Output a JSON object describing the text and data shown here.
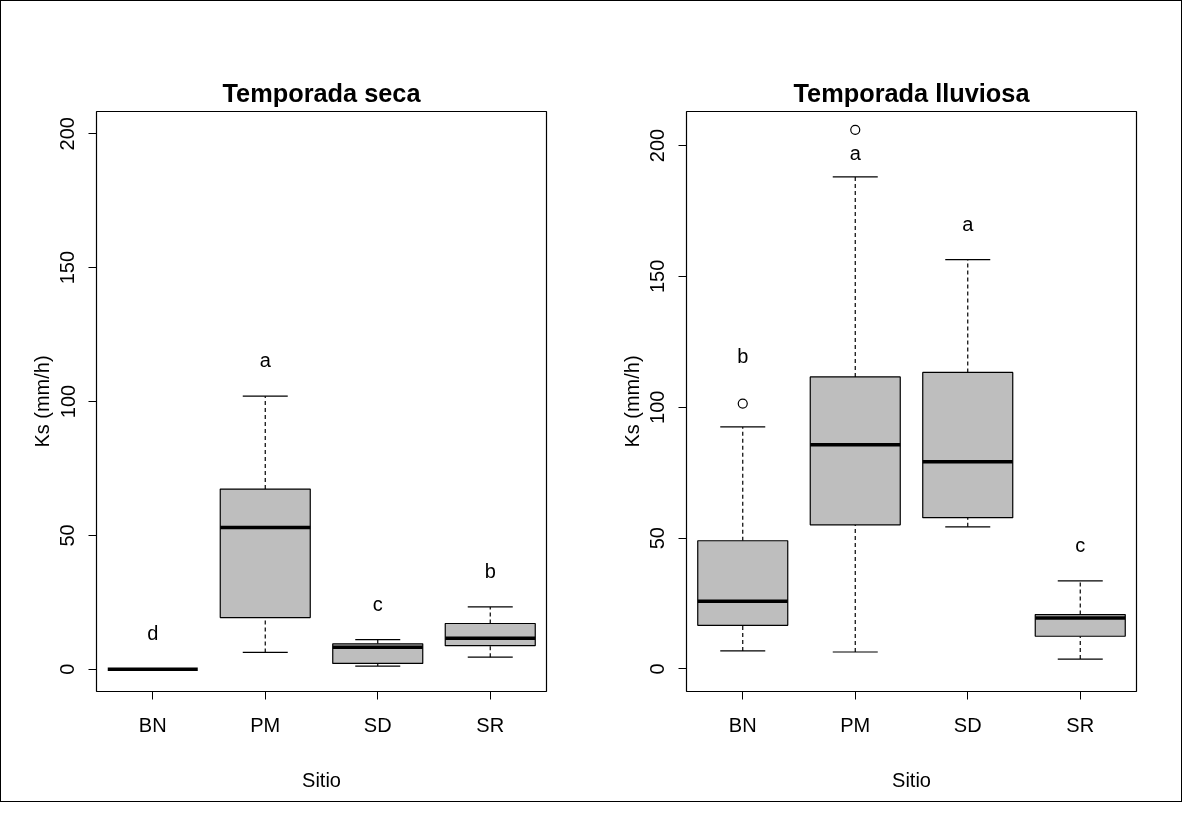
{
  "chart_data": [
    {
      "type": "box",
      "title": "Temporada seca",
      "xlabel": "Sitio",
      "ylabel": "Ks (mm/h)",
      "categories": [
        "BN",
        "PM",
        "SD",
        "SR"
      ],
      "ylim": [
        -8.3,
        208.3
      ],
      "yticks": [
        0,
        50,
        100,
        150,
        200
      ],
      "boxes": [
        {
          "low": 0,
          "q1": 0,
          "median": 0,
          "q3": 0,
          "high": 0
        },
        {
          "low": 6.3,
          "q1": 19.3,
          "median": 52.9,
          "q3": 67.3,
          "high": 102
        },
        {
          "low": 1.2,
          "q1": 2.2,
          "median": 8.2,
          "q3": 9.5,
          "high": 11.1
        },
        {
          "low": 4.5,
          "q1": 8.8,
          "median": 11.6,
          "q3": 17.1,
          "high": 23.3
        }
      ],
      "annotations": [
        "d",
        "a",
        "c",
        "b"
      ]
    },
    {
      "type": "box",
      "title": "Temporada lluviosa",
      "xlabel": "Sitio",
      "ylabel": "Ks (mm/h)",
      "categories": [
        "BN",
        "PM",
        "SD",
        "SR"
      ],
      "ylim": [
        -8.6,
        213
      ],
      "yticks": [
        0,
        50,
        100,
        150,
        200
      ],
      "boxes": [
        {
          "low": 6.9,
          "q1": 16.7,
          "median": 25.9,
          "q3": 49,
          "high": 92.5,
          "outliers": [
            101.4
          ]
        },
        {
          "low": 6.5,
          "q1": 55.1,
          "median": 85.7,
          "q3": 111.6,
          "high": 188,
          "outliers": [
            206
          ]
        },
        {
          "low": 54.3,
          "q1": 57.8,
          "median": 79.2,
          "q3": 113.3,
          "high": 156.4
        },
        {
          "low": 3.8,
          "q1": 12.5,
          "median": 19.5,
          "q3": 20.8,
          "high": 33.7
        }
      ],
      "annotations": [
        "b",
        "a",
        "a",
        "c"
      ]
    }
  ]
}
